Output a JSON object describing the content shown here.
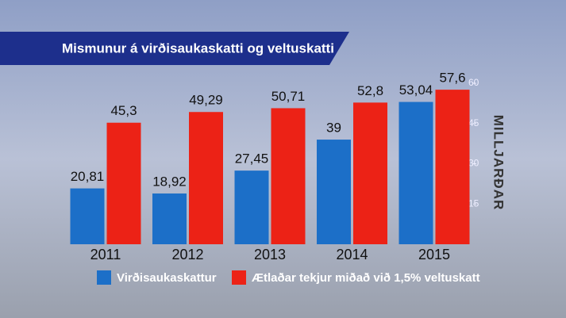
{
  "chart_data": {
    "type": "bar",
    "title": "Mismunur á virðisaukaskatti og veltuskatti",
    "y_label": "MILLJARÐAR",
    "categories": [
      "2011",
      "2012",
      "2013",
      "2014",
      "2015"
    ],
    "series": [
      {
        "name": "Virðisaukaskattur",
        "color": "#1c6fc8",
        "values": [
          20.81,
          18.92,
          27.45,
          39,
          53.04
        ],
        "value_labels": [
          "20,81",
          "18,92",
          "27,45",
          "39",
          "53,04"
        ]
      },
      {
        "name": "Ætlaðar tekjur miðað við 1,5% veltuskatt",
        "color": "#ec2216",
        "values": [
          45.3,
          49.29,
          50.71,
          52.8,
          57.6
        ],
        "value_labels": [
          "45,3",
          "49,29",
          "50,71",
          "52,8",
          "57,6"
        ]
      }
    ],
    "ylim": [
      0,
      60
    ],
    "yticks": [
      15,
      30,
      45,
      60
    ]
  }
}
